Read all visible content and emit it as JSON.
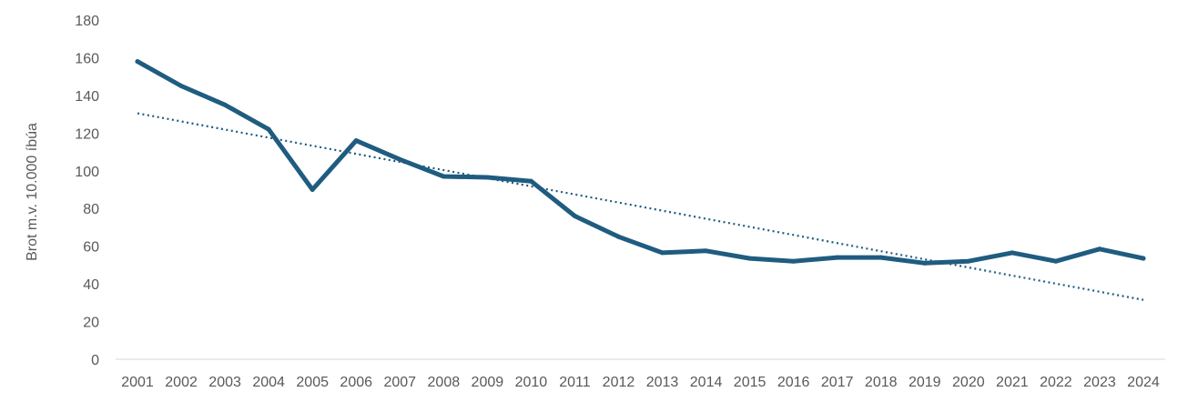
{
  "chart_data": {
    "type": "line",
    "x": [
      "2001",
      "2002",
      "2003",
      "2004",
      "2005",
      "2006",
      "2007",
      "2008",
      "2009",
      "2010",
      "2011",
      "2012",
      "2013",
      "2014",
      "2015",
      "2016",
      "2017",
      "2018",
      "2019",
      "2020",
      "2021",
      "2022",
      "2023",
      "2024"
    ],
    "series": [
      {
        "values": [
          158,
          145,
          135,
          122,
          90,
          116,
          106,
          97,
          96.5,
          94.5,
          76,
          65,
          56.5,
          57.5,
          53.5,
          52,
          54,
          54,
          51,
          52,
          56.5,
          52,
          58.5,
          53.5
        ],
        "color": "#1f5c80"
      }
    ],
    "trendline": {
      "type": "linear",
      "style": "dotted",
      "color": "#1f5c80",
      "start": 130.5,
      "end": 31.5
    },
    "ylabel": "Brot m.v. 10.000 íbúa",
    "ylim": [
      0,
      180
    ],
    "yticks": [
      0,
      20,
      40,
      60,
      80,
      100,
      120,
      140,
      160,
      180
    ],
    "grid": false,
    "legend": "none"
  }
}
